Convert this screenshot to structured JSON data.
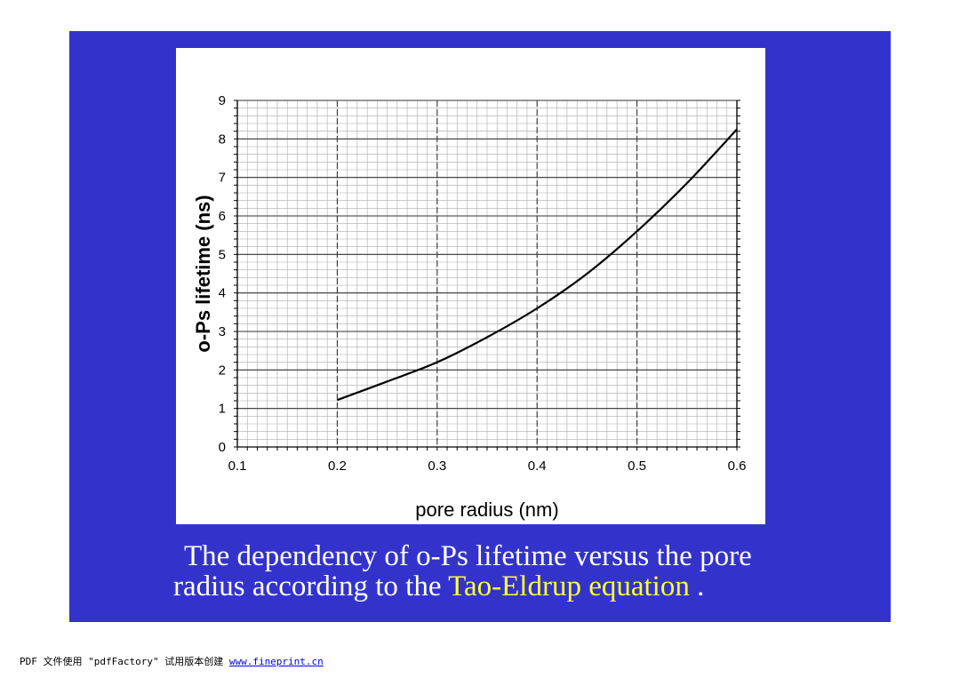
{
  "caption": {
    "line1": "The dependency of o-Ps lifetime versus the pore",
    "line2_prefix": "radius according to the ",
    "line2_highlight": "Tao-Eldrup equation",
    "line2_suffix": " ."
  },
  "footer": {
    "text": "PDF 文件使用 \"pdfFactory\" 试用版本创建 ",
    "link": "www.fineprint.cn"
  },
  "colors": {
    "slide_background": "#3333cc",
    "caption_text": "#ffffff",
    "caption_highlight": "#ffff33",
    "curve": "#000000"
  },
  "chart_data": {
    "type": "line",
    "title": "",
    "xlabel": "pore radius (nm)",
    "ylabel": "o-Ps lifetime (ns)",
    "xlim": [
      0.1,
      0.6
    ],
    "ylim": [
      0,
      9
    ],
    "xticks": [
      "0.1",
      "0.2",
      "0.3",
      "0.4",
      "0.5",
      "0.6"
    ],
    "yticks": [
      "0",
      "1",
      "2",
      "3",
      "4",
      "5",
      "6",
      "7",
      "8",
      "9"
    ],
    "grid": true,
    "series": [
      {
        "x": [
          0.2,
          0.25,
          0.3,
          0.35,
          0.4,
          0.45,
          0.5,
          0.55,
          0.6
        ],
        "y": [
          1.22,
          1.7,
          2.2,
          2.85,
          3.6,
          4.5,
          5.6,
          6.85,
          8.25
        ]
      }
    ]
  }
}
